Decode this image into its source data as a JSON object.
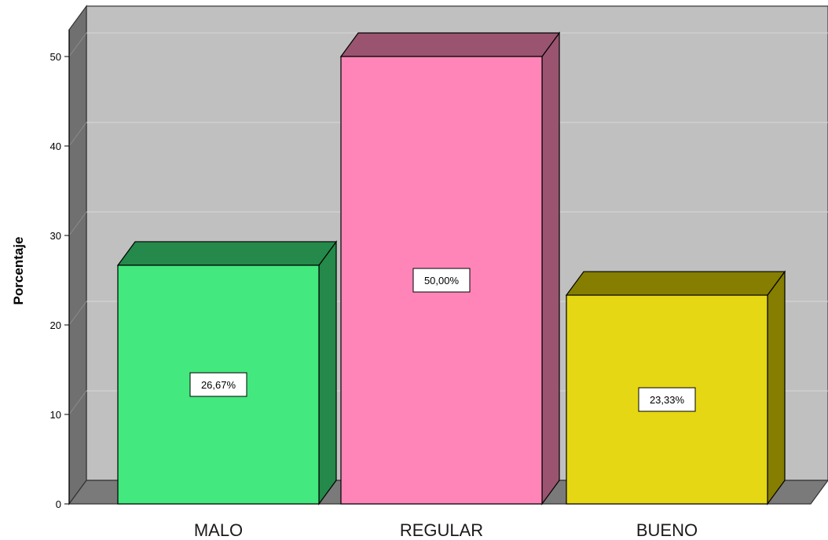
{
  "chart_data": {
    "type": "bar",
    "categories": [
      "MALO",
      "REGULAR",
      "BUENO"
    ],
    "values": [
      26.67,
      50.0,
      23.33
    ],
    "data_labels": [
      "26,67%",
      "50,00%",
      "23,33%"
    ],
    "title": "",
    "xlabel": "",
    "ylabel": "Porcentaje",
    "ylim": [
      0,
      53
    ],
    "yticks": [
      0,
      10,
      20,
      30,
      40,
      50
    ],
    "ytick_labels": [
      "0",
      "10",
      "20",
      "30",
      "40",
      "50"
    ],
    "grid": true,
    "style": "3d-bar",
    "colors": {
      "front": [
        "#43e87e",
        "#ff85b8",
        "#e5d713"
      ],
      "top": [
        "#24894a",
        "#9a5470",
        "#857e00"
      ],
      "side": [
        "#24894a",
        "#9a5470",
        "#857e00"
      ],
      "wall": "#c0c0c0",
      "floor": "#7a7a7a",
      "left_wall": "#707070",
      "grid": "#d7d7d7"
    }
  }
}
